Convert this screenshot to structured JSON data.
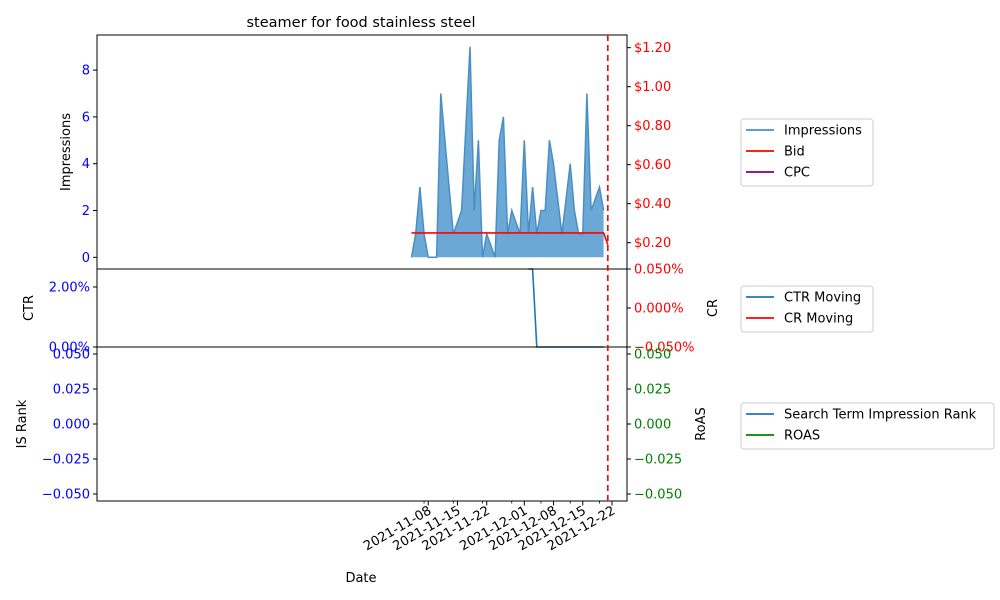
{
  "chart_data": {
    "type": "line",
    "title": "steamer for food stainless steel",
    "xlabel": "Date",
    "x_ticks": [
      "2021-11-08",
      "2021-11-15",
      "2021-11-22",
      "2021-12-01",
      "2021-12-08",
      "2021-12-15",
      "2021-12-22"
    ],
    "dates": [
      "2021-11-04",
      "2021-11-05",
      "2021-11-06",
      "2021-11-07",
      "2021-11-08",
      "2021-11-09",
      "2021-11-10",
      "2021-11-11",
      "2021-11-12",
      "2021-11-13",
      "2021-11-14",
      "2021-11-15",
      "2021-11-16",
      "2021-11-17",
      "2021-11-18",
      "2021-11-19",
      "2021-11-20",
      "2021-11-21",
      "2021-11-22",
      "2021-11-23",
      "2021-11-24",
      "2021-11-25",
      "2021-11-26",
      "2021-11-27",
      "2021-11-28",
      "2021-11-29",
      "2021-11-30",
      "2021-12-01",
      "2021-12-02",
      "2021-12-03",
      "2021-12-04",
      "2021-12-05",
      "2021-12-06",
      "2021-12-07",
      "2021-12-08",
      "2021-12-09",
      "2021-12-10",
      "2021-12-11",
      "2021-12-12",
      "2021-12-13",
      "2021-12-14",
      "2021-12-15",
      "2021-12-16",
      "2021-12-17",
      "2021-12-18",
      "2021-12-19",
      "2021-12-20"
    ],
    "marker_date": "2021-12-21",
    "panel1": {
      "ylabel_left": "Impressions",
      "left_ticks": [
        "0",
        "2",
        "4",
        "6",
        "8"
      ],
      "left_ylim": [
        -0.5,
        9.5
      ],
      "right_ticks": [
        "$0.20",
        "$0.40",
        "$0.60",
        "$0.80",
        "$1.00",
        "$1.20"
      ],
      "right_ylim": [
        0.065,
        1.265
      ],
      "impressions": [
        0,
        1,
        3,
        1,
        0,
        0,
        0,
        7,
        5,
        3,
        1,
        1.5,
        2,
        5.5,
        9,
        2,
        5,
        0,
        1,
        0.5,
        0,
        5,
        6,
        1,
        2,
        1.5,
        1,
        5,
        1,
        3,
        1,
        2,
        2,
        5,
        4,
        2.5,
        1,
        2.5,
        4,
        2,
        1,
        1,
        7,
        2,
        2.5,
        3,
        2
      ],
      "bid_dates": [
        "2021-11-04",
        "2021-12-20",
        "2021-12-21"
      ],
      "bid": [
        0.25,
        0.25,
        0.19
      ],
      "cpc": []
    },
    "panel2": {
      "ylabel_left": "CTR",
      "ylabel_right": "CR",
      "left_ticks": [
        "0.00%",
        "2.00%"
      ],
      "left_ylim": [
        0,
        2.6
      ],
      "right_ticks": [
        "−0.050%",
        "0.000%",
        "0.050%"
      ],
      "right_ylim": [
        -0.05,
        0.05
      ],
      "ctr_dates": [
        "2021-12-02",
        "2021-12-03",
        "2021-12-04",
        "2021-12-20"
      ],
      "ctr": [
        2.6,
        2.6,
        0,
        0
      ],
      "cr": []
    },
    "panel3": {
      "ylabel_left": "IS Rank",
      "ylabel_right": "RoAS",
      "left_ticks": [
        "−0.050",
        "−0.025",
        "0.000",
        "0.025",
        "0.050"
      ],
      "right_ticks": [
        "−0.050",
        "−0.025",
        "0.000",
        "0.025",
        "0.050"
      ],
      "ylim": [
        -0.055,
        0.055
      ],
      "is_rank": [],
      "roas": []
    },
    "legends": [
      {
        "entries": [
          {
            "label": "Impressions",
            "color": "#5b9fd0"
          },
          {
            "label": "Bid",
            "color": "#ff0000"
          },
          {
            "label": "CPC",
            "color": "#800080"
          }
        ]
      },
      {
        "entries": [
          {
            "label": "CTR Moving",
            "color": "#1f77b4"
          },
          {
            "label": "CR Moving",
            "color": "#ff0000"
          }
        ]
      },
      {
        "entries": [
          {
            "label": "Search Term Impression Rank",
            "color": "#1f77b4"
          },
          {
            "label": "ROAS",
            "color": "#008000"
          }
        ]
      }
    ],
    "colors": {
      "impressions_fill": "#5b9fd0",
      "impressions_line": "#4a8fc4",
      "bid": "#ff0000",
      "ctr": "#1f77b4",
      "marker": "#ff0000",
      "left_axis": "#0000ff",
      "right_axis_panel1": "#ff0000",
      "right_axis_panel2": "#ff0000",
      "right_axis_panel3": "#008000"
    }
  }
}
